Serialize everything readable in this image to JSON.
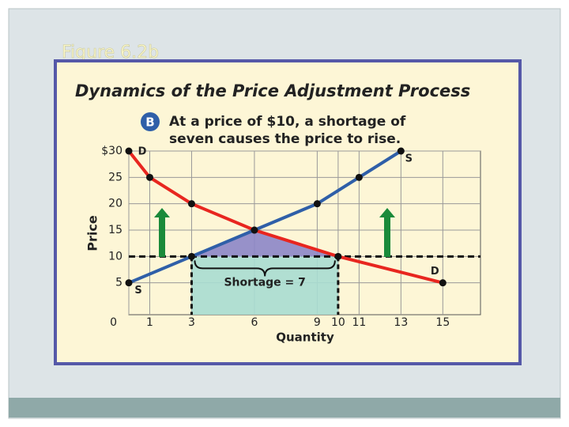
{
  "slide_title": "Figure 6.2b",
  "chart_data": {
    "type": "line",
    "title": "Dynamics of the Price Adjustment Process",
    "badge": "B",
    "subtitle": [
      "At a price of $10, a shortage of",
      "seven causes the price to rise."
    ],
    "x_label": "Quantity",
    "y_label": "Price",
    "xlim": [
      0,
      16.8
    ],
    "ylim": [
      0,
      30
    ],
    "xticks": [
      0,
      1,
      3,
      6,
      9,
      10,
      11,
      13,
      15
    ],
    "yticks": [
      {
        "value": 30,
        "label": "$30"
      },
      25,
      20,
      15,
      10,
      5
    ],
    "grid": true,
    "series": [
      {
        "name": "D",
        "color": "#e8261f",
        "x": [
          0,
          1,
          3,
          6,
          10,
          15
        ],
        "values": [
          30,
          25,
          20,
          15,
          10,
          5
        ]
      },
      {
        "name": "S",
        "color": "#2f5fa8",
        "x": [
          0,
          3,
          6,
          9,
          11,
          13
        ],
        "values": [
          5,
          10,
          15,
          20,
          25,
          30
        ]
      }
    ],
    "reference_price": 10,
    "shortage_quantities": [
      3,
      10
    ],
    "annotation": "Shortage = 7"
  }
}
